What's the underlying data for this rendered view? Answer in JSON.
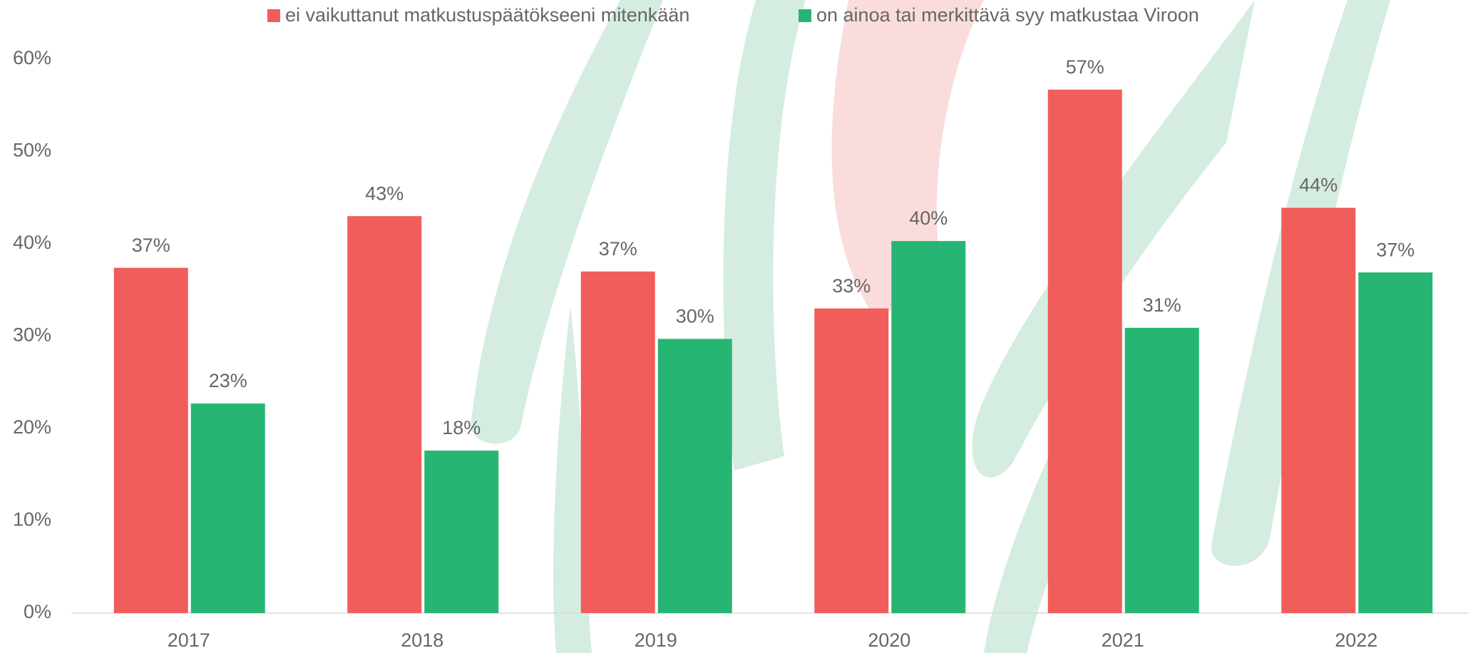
{
  "chart_data": {
    "type": "bar",
    "categories": [
      "2017",
      "2018",
      "2019",
      "2020",
      "2021",
      "2022"
    ],
    "series": [
      {
        "name": "ei vaikuttanut matkustuspäätökseeni mitenkään",
        "color": "#f05d5b",
        "values": [
          37.4,
          43.0,
          37.0,
          33.0,
          56.7,
          43.9
        ],
        "value_labels": [
          "37%",
          "43%",
          "37%",
          "33%",
          "57%",
          "44%"
        ]
      },
      {
        "name": "on ainoa tai merkittävä syy matkustaa Viroon",
        "color": "#27b574",
        "values": [
          22.7,
          17.6,
          29.7,
          40.3,
          30.9,
          36.9
        ],
        "value_labels": [
          "23%",
          "18%",
          "30%",
          "40%",
          "31%",
          "37%"
        ]
      }
    ],
    "ylim": [
      0,
      60
    ],
    "yticks": [
      {
        "value": 0,
        "label": "0%"
      },
      {
        "value": 10,
        "label": "10%"
      },
      {
        "value": 20,
        "label": "20%"
      },
      {
        "value": 30,
        "label": "30%"
      },
      {
        "value": 40,
        "label": "40%"
      },
      {
        "value": 50,
        "label": "50%"
      },
      {
        "value": 60,
        "label": "60%"
      }
    ],
    "legend": "top"
  }
}
